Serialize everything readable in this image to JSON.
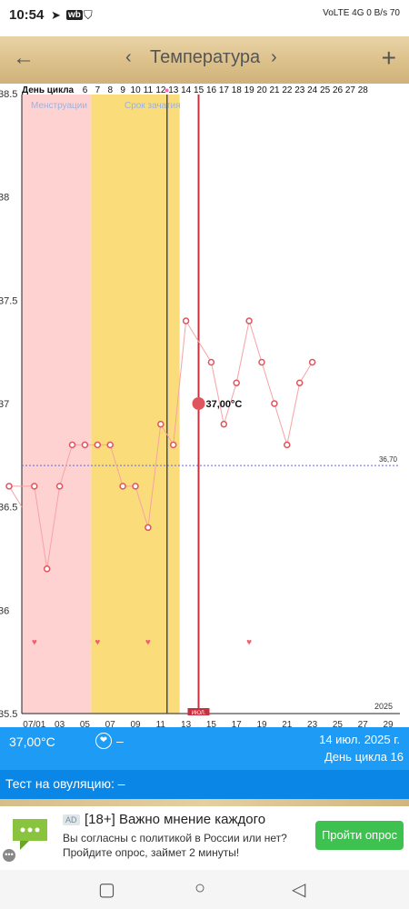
{
  "status_bar": {
    "time": "10:54",
    "left_icons": [
      "telegram-icon",
      "wildberries-icon",
      "shield-icon"
    ],
    "right_text": "VoLTE 4G 0 B/s 70",
    "battery": "70"
  },
  "toolbar": {
    "title": "Температура",
    "prev_symbol": "‹",
    "next_symbol": "›",
    "back_symbol": "←",
    "add_symbol": "+"
  },
  "chart_data": {
    "type": "line",
    "cycle_header_label": "День цикла",
    "cycle_days": [
      "6",
      "7",
      "8",
      "9",
      "10",
      "11",
      "12",
      "13",
      "14",
      "15",
      "16",
      "17",
      "18",
      "19",
      "20",
      "21",
      "22",
      "23",
      "24",
      "25",
      "26",
      "27",
      "28"
    ],
    "x_tick_labels": [
      "07/01",
      "03",
      "05",
      "07",
      "09",
      "11",
      "13",
      "15",
      "17",
      "19",
      "21",
      "23",
      "25",
      "27",
      "29"
    ],
    "y_tick_labels": [
      "35.5",
      "36",
      "36.5",
      "37",
      "37.5",
      "38",
      "38.5"
    ],
    "ylim": [
      35.5,
      38.5
    ],
    "year_label": "2025",
    "menstruation_label": "Менструации",
    "conception_label": "Срок зачатия",
    "today_label": "ИЮЛ.",
    "selected_label": "37,00°C",
    "coverline_value": 36.7,
    "coverline_label": "36,70",
    "series": [
      {
        "days": [
          30,
          1,
          2,
          3,
          4,
          5,
          6,
          7,
          8,
          9,
          10,
          11,
          12,
          13,
          15,
          16,
          17,
          18,
          19,
          20,
          21,
          22,
          23
        ],
        "values": [
          36.6,
          36.6,
          36.2,
          36.6,
          36.8,
          36.8,
          36.8,
          36.8,
          36.6,
          36.6,
          36.4,
          36.9,
          36.8,
          37.4,
          37.2,
          36.9,
          37.1,
          37.4,
          37.2,
          37.0,
          36.8,
          37.1,
          37.2
        ]
      }
    ],
    "selected_point": {
      "day": 14,
      "value": 37.0
    },
    "hearts_days": [
      1,
      6,
      10,
      18
    ],
    "heart_value": 35.85,
    "menstruation_days": [
      30,
      5
    ],
    "conception_days": [
      6,
      12
    ],
    "ovulation_day": 11,
    "colors": {
      "menstruation": "#ffd2d2",
      "conception": "#fbdc7a",
      "line": "#f7a2a6",
      "point": "#e0545d",
      "ovulation": "#3b4a8a",
      "today": "#c9303f",
      "coverline": "#6a6ad0"
    }
  },
  "info_bar": {
    "temperature": "37,00°C",
    "heart_dash": "–",
    "date": "14 июл. 2025 г.",
    "cycle_day": "День цикла 16"
  },
  "ovulation_test": {
    "label": "Тест на овуляцию: –"
  },
  "ad": {
    "badge": "AD",
    "title": "[18+] Важно мнение каждого",
    "text": "Вы согласны с политикой в России или нет? Пройдите опрос, займет 2 минуты!",
    "button": "Пройти опрос"
  }
}
